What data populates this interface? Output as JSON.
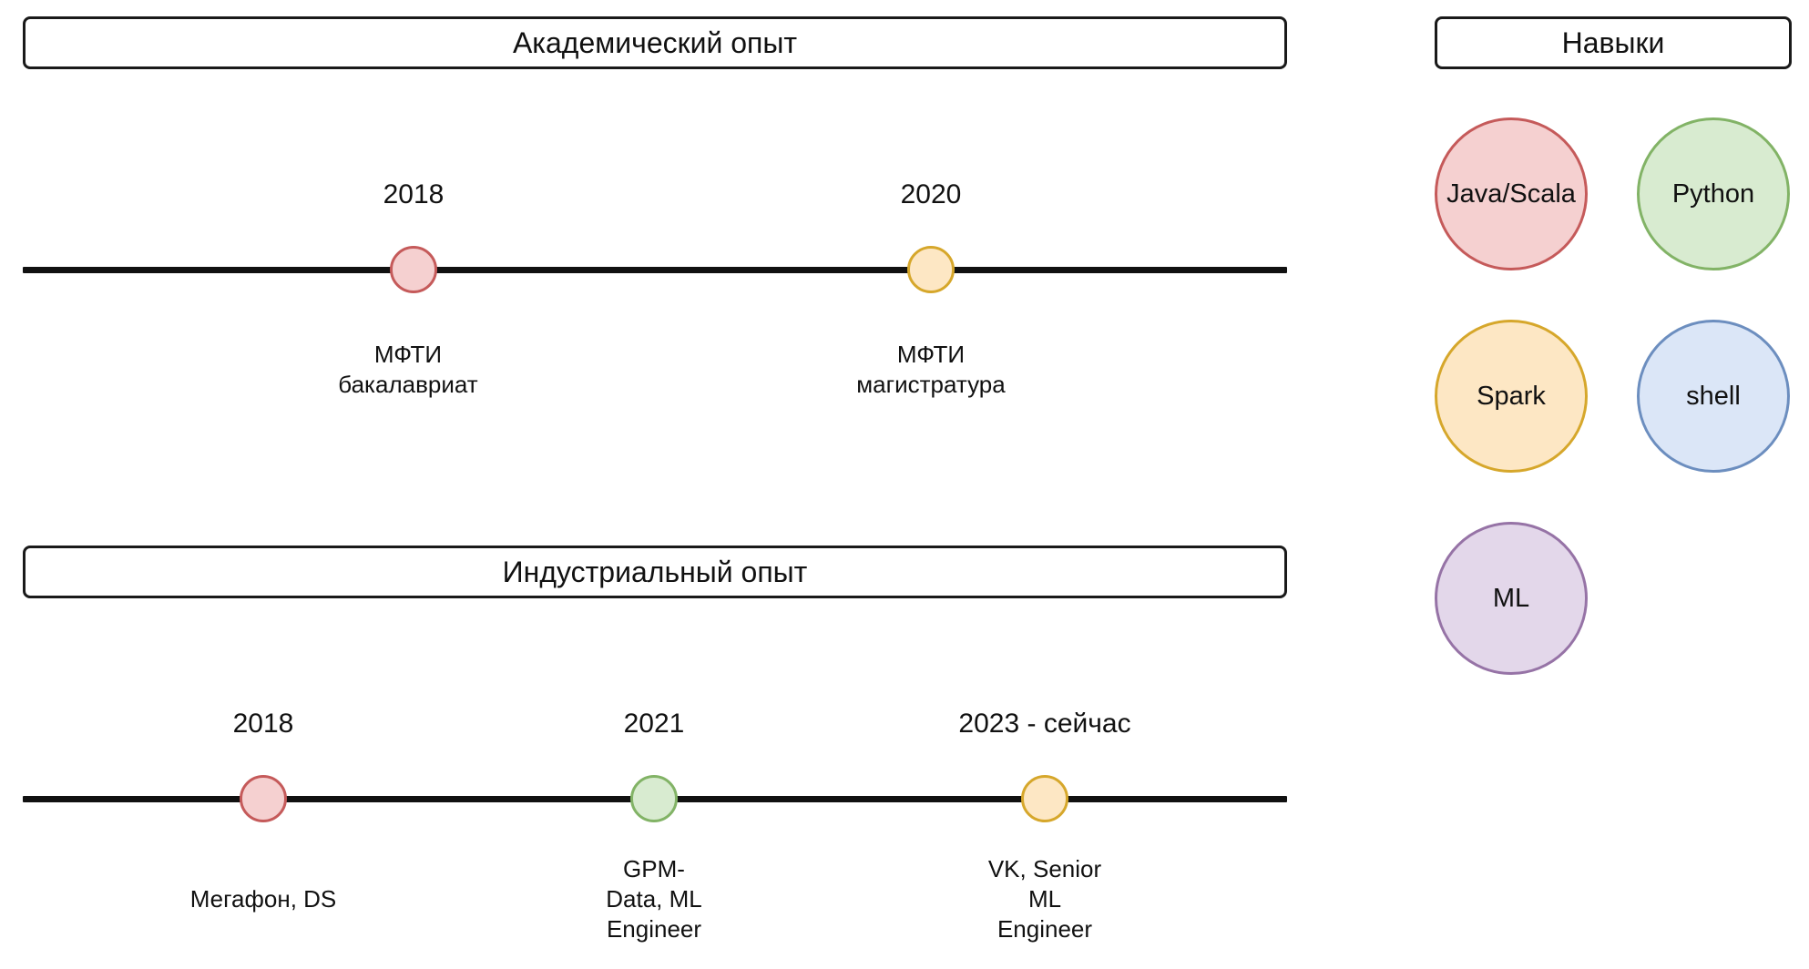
{
  "academic": {
    "title": "Академический опыт",
    "events": [
      {
        "year": "2018",
        "lines": [
          "МФТИ",
          "бакалавриат"
        ],
        "color": {
          "fill": "#f5d0d0",
          "stroke": "#c55a5a"
        }
      },
      {
        "year": "2020",
        "lines": [
          "МФТИ",
          "магистратура"
        ],
        "color": {
          "fill": "#fde7c4",
          "stroke": "#d6a72b"
        }
      }
    ]
  },
  "industrial": {
    "title": "Индустриальный опыт",
    "events": [
      {
        "year": "2018",
        "lines": [
          "Мегафон, DS"
        ],
        "color": {
          "fill": "#f5d0d0",
          "stroke": "#c55a5a"
        }
      },
      {
        "year": "2021",
        "lines": [
          "GPM-",
          "Data, ML",
          "Engineer"
        ],
        "color": {
          "fill": "#d8ebd0",
          "stroke": "#82b366"
        }
      },
      {
        "year": "2023 - сейчас",
        "lines": [
          "VK, Senior",
          "ML",
          "Engineer"
        ],
        "color": {
          "fill": "#fde7c4",
          "stroke": "#d6a72b"
        }
      }
    ]
  },
  "skills": {
    "title": "Навыки",
    "items": [
      {
        "label": "Java/Scala",
        "fill": "#f5d0d0",
        "stroke": "#c55a5a"
      },
      {
        "label": "Python",
        "fill": "#d8ebd0",
        "stroke": "#82b366"
      },
      {
        "label": "Spark",
        "fill": "#fde7c4",
        "stroke": "#d6a72b"
      },
      {
        "label": "shell",
        "fill": "#dbe6f7",
        "stroke": "#6c8ebf"
      },
      {
        "label": "ML",
        "fill": "#e3d7ea",
        "stroke": "#9673a6"
      }
    ]
  }
}
